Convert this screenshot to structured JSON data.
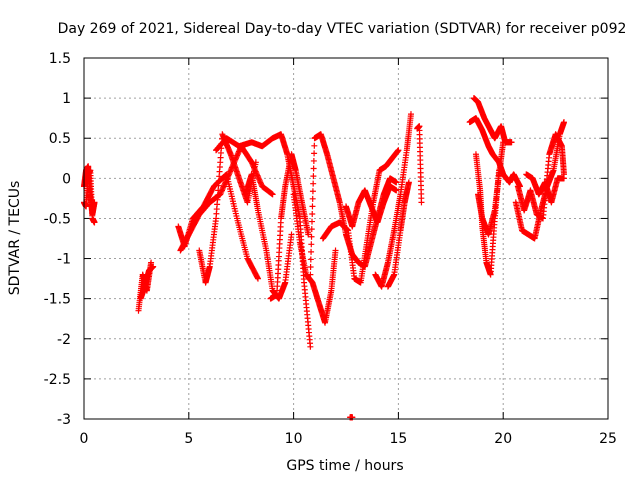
{
  "chart_data": {
    "type": "scatter",
    "title": "Day 269 of 2021, Sidereal Day-to-day VTEC variation (SDTVAR) for receiver p092",
    "xlabel": "GPS time / hours",
    "ylabel": "SDTVAR / TECUs",
    "xlim": [
      0,
      25
    ],
    "ylim": [
      -3,
      1.5
    ],
    "xticks": [
      0,
      5,
      10,
      15,
      20,
      25
    ],
    "xtick_labels": [
      "0",
      "5",
      "10",
      "15",
      "20",
      "25"
    ],
    "yticks": [
      -3,
      -2.5,
      -2,
      -1.5,
      -1,
      -0.5,
      0,
      0.5,
      1,
      1.5
    ],
    "ytick_labels": [
      "-3",
      "-2.5",
      "-2",
      "-1.5",
      "-1",
      "-0.5",
      "0",
      "0.5",
      "1",
      "1.5"
    ],
    "grid": true,
    "marker": "+",
    "series": [
      {
        "name": "SDTVAR",
        "color": "#ff0000",
        "segments": [
          {
            "x": [
              0.0,
              0.1,
              0.2,
              0.3,
              0.4,
              0.5
            ],
            "y": [
              -0.1,
              0.1,
              0.15,
              -0.2,
              -0.45,
              -0.3
            ]
          },
          {
            "x": [
              0.0,
              0.1,
              0.2,
              0.3,
              0.4,
              0.5
            ],
            "y": [
              -0.3,
              -0.35,
              0.05,
              0.1,
              -0.5,
              -0.55
            ]
          },
          {
            "x": [
              2.6,
              2.8,
              3.0,
              3.2
            ],
            "y": [
              -1.65,
              -1.2,
              -1.4,
              -1.05
            ]
          },
          {
            "x": [
              2.7,
              2.9,
              3.1,
              3.3
            ],
            "y": [
              -1.5,
              -1.35,
              -1.15,
              -1.1
            ]
          },
          {
            "x": [
              4.5,
              4.8,
              5.2,
              5.7,
              6.2,
              6.8,
              7.3,
              7.8,
              8.3
            ],
            "y": [
              -0.6,
              -0.85,
              -0.5,
              -0.35,
              -0.1,
              0.05,
              -0.5,
              -1.0,
              -1.25
            ]
          },
          {
            "x": [
              4.6,
              5.0,
              5.5,
              6.0,
              6.5,
              7.0,
              7.5,
              8.0,
              8.5,
              9.0
            ],
            "y": [
              -0.9,
              -0.7,
              -0.45,
              -0.3,
              -0.2,
              0.1,
              0.4,
              0.2,
              -0.1,
              -0.2
            ]
          },
          {
            "x": [
              5.5,
              5.8,
              6.0,
              6.3,
              6.6,
              7.0,
              7.4,
              7.8,
              8.2
            ],
            "y": [
              -0.9,
              -1.3,
              -1.1,
              -0.5,
              0.55,
              0.3,
              0.0,
              -0.3,
              0.2
            ]
          },
          {
            "x": [
              6.3,
              6.8,
              7.4,
              8.0,
              8.5,
              9.0,
              9.4,
              9.7,
              10.0,
              10.3,
              10.5,
              10.8
            ],
            "y": [
              0.35,
              0.5,
              0.4,
              0.45,
              0.4,
              0.5,
              0.55,
              0.3,
              -0.1,
              -0.5,
              -1.3,
              -2.1
            ]
          },
          {
            "x": [
              7.7,
              8.0,
              8.3,
              8.7,
              9.0,
              9.3,
              9.6,
              9.9
            ],
            "y": [
              -0.2,
              0.05,
              -0.4,
              -0.9,
              -1.4,
              -1.5,
              -1.3,
              -0.7
            ]
          },
          {
            "x": [
              8.9,
              9.2,
              9.4,
              9.6,
              9.9,
              10.1,
              10.4,
              10.7
            ],
            "y": [
              -1.5,
              -1.45,
              -0.5,
              -0.1,
              0.3,
              0.1,
              -0.3,
              -0.7
            ]
          },
          {
            "x": [
              10.0,
              10.3,
              10.6,
              10.9,
              11.2,
              11.5,
              11.8,
              12.0
            ],
            "y": [
              -0.2,
              -0.8,
              -1.2,
              -1.3,
              -1.55,
              -1.8,
              -1.4,
              -0.9
            ]
          },
          {
            "x": [
              10.8,
              11.0,
              11.3,
              11.6,
              11.9,
              12.2,
              12.5,
              12.8,
              13.1,
              13.4,
              13.7,
              14.0,
              14.3,
              14.6,
              14.9
            ],
            "y": [
              -1.2,
              0.5,
              0.55,
              0.3,
              0.0,
              -0.3,
              -0.7,
              -0.95,
              -1.05,
              -1.1,
              -0.8,
              -0.5,
              -0.2,
              0.0,
              -0.05
            ]
          },
          {
            "x": [
              11.4,
              11.8,
              12.2,
              12.6,
              12.9,
              13.2,
              13.5,
              13.8,
              14.1,
              14.4,
              14.7,
              15.0
            ],
            "y": [
              -0.75,
              -0.6,
              -0.55,
              -0.65,
              -1.25,
              -1.3,
              -0.8,
              -0.3,
              0.1,
              0.15,
              0.25,
              0.35
            ]
          },
          {
            "x": [
              12.5,
              12.8,
              13.1,
              13.4,
              13.7,
              14.0,
              14.3,
              14.6,
              14.9
            ],
            "y": [
              -0.35,
              -0.6,
              -0.3,
              -0.15,
              -0.35,
              -0.55,
              -0.3,
              -0.1,
              -0.15
            ]
          },
          {
            "x": [
              13.9,
              14.2,
              14.5,
              14.8,
              15.1,
              15.4,
              15.6
            ],
            "y": [
              -1.2,
              -1.35,
              -1.05,
              -0.65,
              -0.2,
              0.35,
              0.8
            ]
          },
          {
            "x": [
              14.5,
              14.8,
              15.1,
              15.3,
              15.5
            ],
            "y": [
              -1.35,
              -1.2,
              -0.65,
              -0.3,
              -0.05
            ]
          },
          {
            "x": [
              15.9,
              16.0,
              16.1
            ],
            "y": [
              0.62,
              0.65,
              -0.3
            ]
          },
          {
            "x": [
              12.7,
              12.8
            ],
            "y": [
              -2.98,
              -2.98
            ]
          },
          {
            "x": [
              18.4,
              18.7,
              19.0,
              19.3,
              19.5,
              19.8,
              20.0,
              20.3,
              20.5,
              20.8
            ],
            "y": [
              0.7,
              0.75,
              0.6,
              0.4,
              0.3,
              0.2,
              0.05,
              -0.05,
              0.05,
              -0.1
            ]
          },
          {
            "x": [
              18.6,
              18.8,
              19.1,
              19.4,
              19.6,
              19.9,
              20.1,
              20.4
            ],
            "y": [
              1.0,
              0.95,
              0.75,
              0.6,
              0.5,
              0.65,
              0.45,
              0.45
            ]
          },
          {
            "x": [
              18.7,
              18.9,
              19.0,
              19.2,
              19.4,
              19.6,
              19.8
            ],
            "y": [
              0.3,
              -0.15,
              -0.6,
              -1.05,
              -1.2,
              -0.5,
              0.1
            ]
          },
          {
            "x": [
              18.8,
              19.0,
              19.3,
              19.6,
              19.8,
              20.0
            ],
            "y": [
              -0.2,
              -0.5,
              -0.7,
              -0.4,
              0.05,
              0.45
            ]
          },
          {
            "x": [
              20.6,
              20.9,
              21.2,
              21.5,
              21.8,
              22.1,
              22.4,
              22.7,
              22.9
            ],
            "y": [
              -0.3,
              -0.65,
              -0.7,
              -0.75,
              -0.4,
              -0.1,
              0.1,
              0.55,
              0.7
            ]
          },
          {
            "x": [
              20.7,
              21.0,
              21.3,
              21.6,
              21.9,
              22.2,
              22.5,
              22.8,
              22.9
            ],
            "y": [
              -0.1,
              -0.4,
              -0.15,
              -0.45,
              -0.5,
              0.3,
              0.55,
              0.4,
              0.05
            ]
          },
          {
            "x": [
              21.1,
              21.4,
              21.7,
              22.0,
              22.3,
              22.6,
              22.9
            ],
            "y": [
              0.05,
              0.0,
              -0.2,
              -0.05,
              -0.3,
              0.0,
              0.0
            ]
          }
        ]
      }
    ]
  }
}
